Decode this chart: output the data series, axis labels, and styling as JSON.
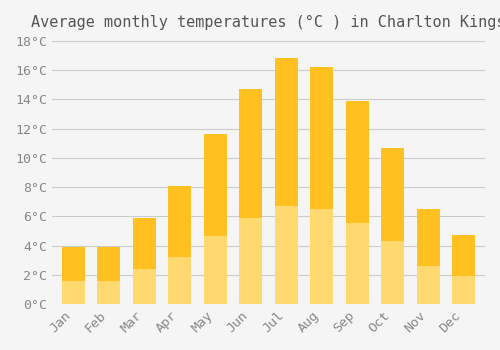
{
  "title": "Average monthly temperatures (°C ) in Charlton Kings",
  "months": [
    "Jan",
    "Feb",
    "Mar",
    "Apr",
    "May",
    "Jun",
    "Jul",
    "Aug",
    "Sep",
    "Oct",
    "Nov",
    "Dec"
  ],
  "values": [
    3.9,
    3.9,
    5.9,
    8.1,
    11.6,
    14.7,
    16.8,
    16.2,
    13.9,
    10.7,
    6.5,
    4.7
  ],
  "bar_color_top": "#FFC020",
  "bar_color_bottom": "#FFD870",
  "background_color": "#F5F5F5",
  "grid_color": "#CCCCCC",
  "title_color": "#555555",
  "tick_label_color": "#888888",
  "ylim": [
    0,
    18
  ],
  "yticks": [
    0,
    2,
    4,
    6,
    8,
    10,
    12,
    14,
    16,
    18
  ],
  "title_fontsize": 11,
  "tick_fontsize": 9.5,
  "font_family": "monospace"
}
